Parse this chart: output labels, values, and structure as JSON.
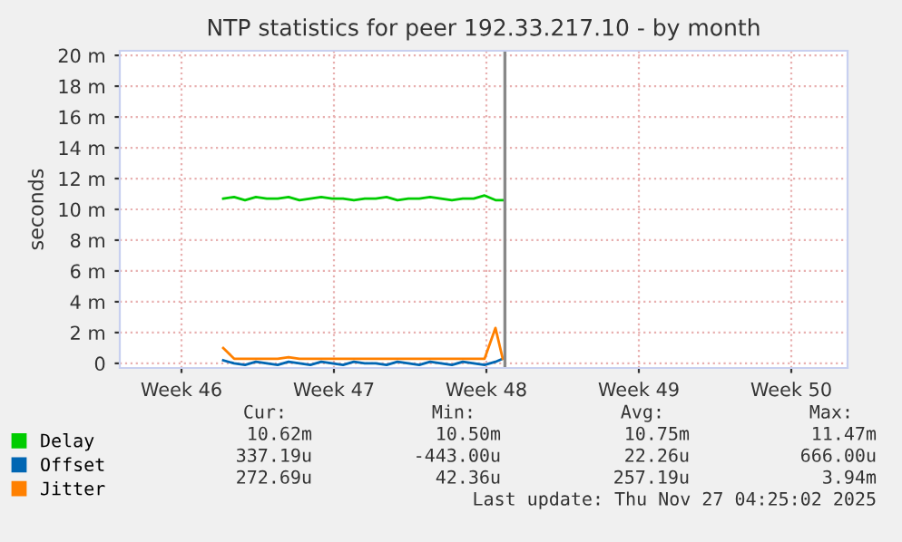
{
  "chart_data": {
    "type": "line",
    "title": "NTP statistics for peer 192.33.217.10 - by month",
    "ylabel": "seconds",
    "x": [
      "2025-11-14T06:00",
      "2025-11-14T18:00",
      "2025-11-15T06:00",
      "2025-11-15T18:00",
      "2025-11-16T06:00",
      "2025-11-16T18:00",
      "2025-11-17T06:00",
      "2025-11-17T18:00",
      "2025-11-18T06:00",
      "2025-11-18T18:00",
      "2025-11-19T06:00",
      "2025-11-19T18:00",
      "2025-11-20T06:00",
      "2025-11-20T18:00",
      "2025-11-21T06:00",
      "2025-11-21T18:00",
      "2025-11-22T06:00",
      "2025-11-22T18:00",
      "2025-11-23T06:00",
      "2025-11-23T18:00",
      "2025-11-24T06:00",
      "2025-11-24T18:00",
      "2025-11-25T06:00",
      "2025-11-25T18:00",
      "2025-11-26T06:00",
      "2025-11-26T18:00",
      "2025-11-27T02:00"
    ],
    "series": [
      {
        "name": "Delay",
        "color": "#00cc00",
        "values": [
          10.7,
          10.8,
          10.6,
          10.8,
          10.7,
          10.7,
          10.8,
          10.6,
          10.7,
          10.8,
          10.7,
          10.7,
          10.6,
          10.7,
          10.7,
          10.8,
          10.6,
          10.7,
          10.7,
          10.8,
          10.7,
          10.6,
          10.7,
          10.7,
          10.9,
          10.6,
          10.6
        ]
      },
      {
        "name": "Offset",
        "color": "#0066b3",
        "values": [
          0.2,
          0.0,
          -0.1,
          0.1,
          0.0,
          -0.1,
          0.1,
          0.0,
          -0.1,
          0.1,
          0.0,
          -0.1,
          0.1,
          0.0,
          0.0,
          -0.1,
          0.1,
          0.0,
          -0.1,
          0.1,
          0.0,
          -0.1,
          0.1,
          0.0,
          -0.1,
          0.1,
          0.3
        ]
      },
      {
        "name": "Jitter",
        "color": "#ff8000",
        "values": [
          1.0,
          0.3,
          0.3,
          0.3,
          0.3,
          0.3,
          0.4,
          0.3,
          0.3,
          0.3,
          0.3,
          0.3,
          0.3,
          0.3,
          0.3,
          0.3,
          0.3,
          0.3,
          0.3,
          0.3,
          0.3,
          0.3,
          0.3,
          0.3,
          0.3,
          2.3,
          0.3
        ]
      }
    ],
    "xlim": [
      "2025-11-09T12:00",
      "2025-12-12T22:00"
    ],
    "xticks": [
      {
        "value": "2025-11-12T08:00",
        "label": "Week 46"
      },
      {
        "value": "2025-11-19T08:00",
        "label": "Week 47"
      },
      {
        "value": "2025-11-26T08:00",
        "label": "Week 48"
      },
      {
        "value": "2025-12-03T08:00",
        "label": "Week 49"
      },
      {
        "value": "2025-12-10T08:00",
        "label": "Week 50"
      }
    ],
    "ylim": [
      -0.3,
      20.3
    ],
    "yticks": [
      0,
      {
        "value": 2,
        "label": "2 m"
      },
      {
        "value": 4,
        "label": "4 m"
      },
      {
        "value": 6,
        "label": "6 m"
      },
      {
        "value": 8,
        "label": "8 m"
      },
      {
        "value": 10,
        "label": "10 m"
      },
      {
        "value": 12,
        "label": "12 m"
      },
      {
        "value": 14,
        "label": "14 m"
      },
      {
        "value": 16,
        "label": "16 m"
      },
      {
        "value": 18,
        "label": "18 m"
      },
      {
        "value": 20,
        "label": "20 m"
      }
    ],
    "ref_lines": [
      {
        "axis": "x",
        "value": "2025-11-27T04:25",
        "color": "#888888"
      }
    ],
    "grid": true,
    "legend": "bottom left",
    "marker": "none",
    "line_style": "solid",
    "annotations": [
      "Cur:",
      "Min:",
      "Avg:",
      "Max:",
      "10.62m",
      "10.50m",
      "10.75m",
      "11.47m",
      "337.19u",
      "-443.00u",
      "22.26u",
      "666.00u",
      "272.69u",
      "42.36u",
      "257.19u",
      "3.94m",
      "Last update: Thu Nov 27 04:25:02 2025"
    ]
  }
}
